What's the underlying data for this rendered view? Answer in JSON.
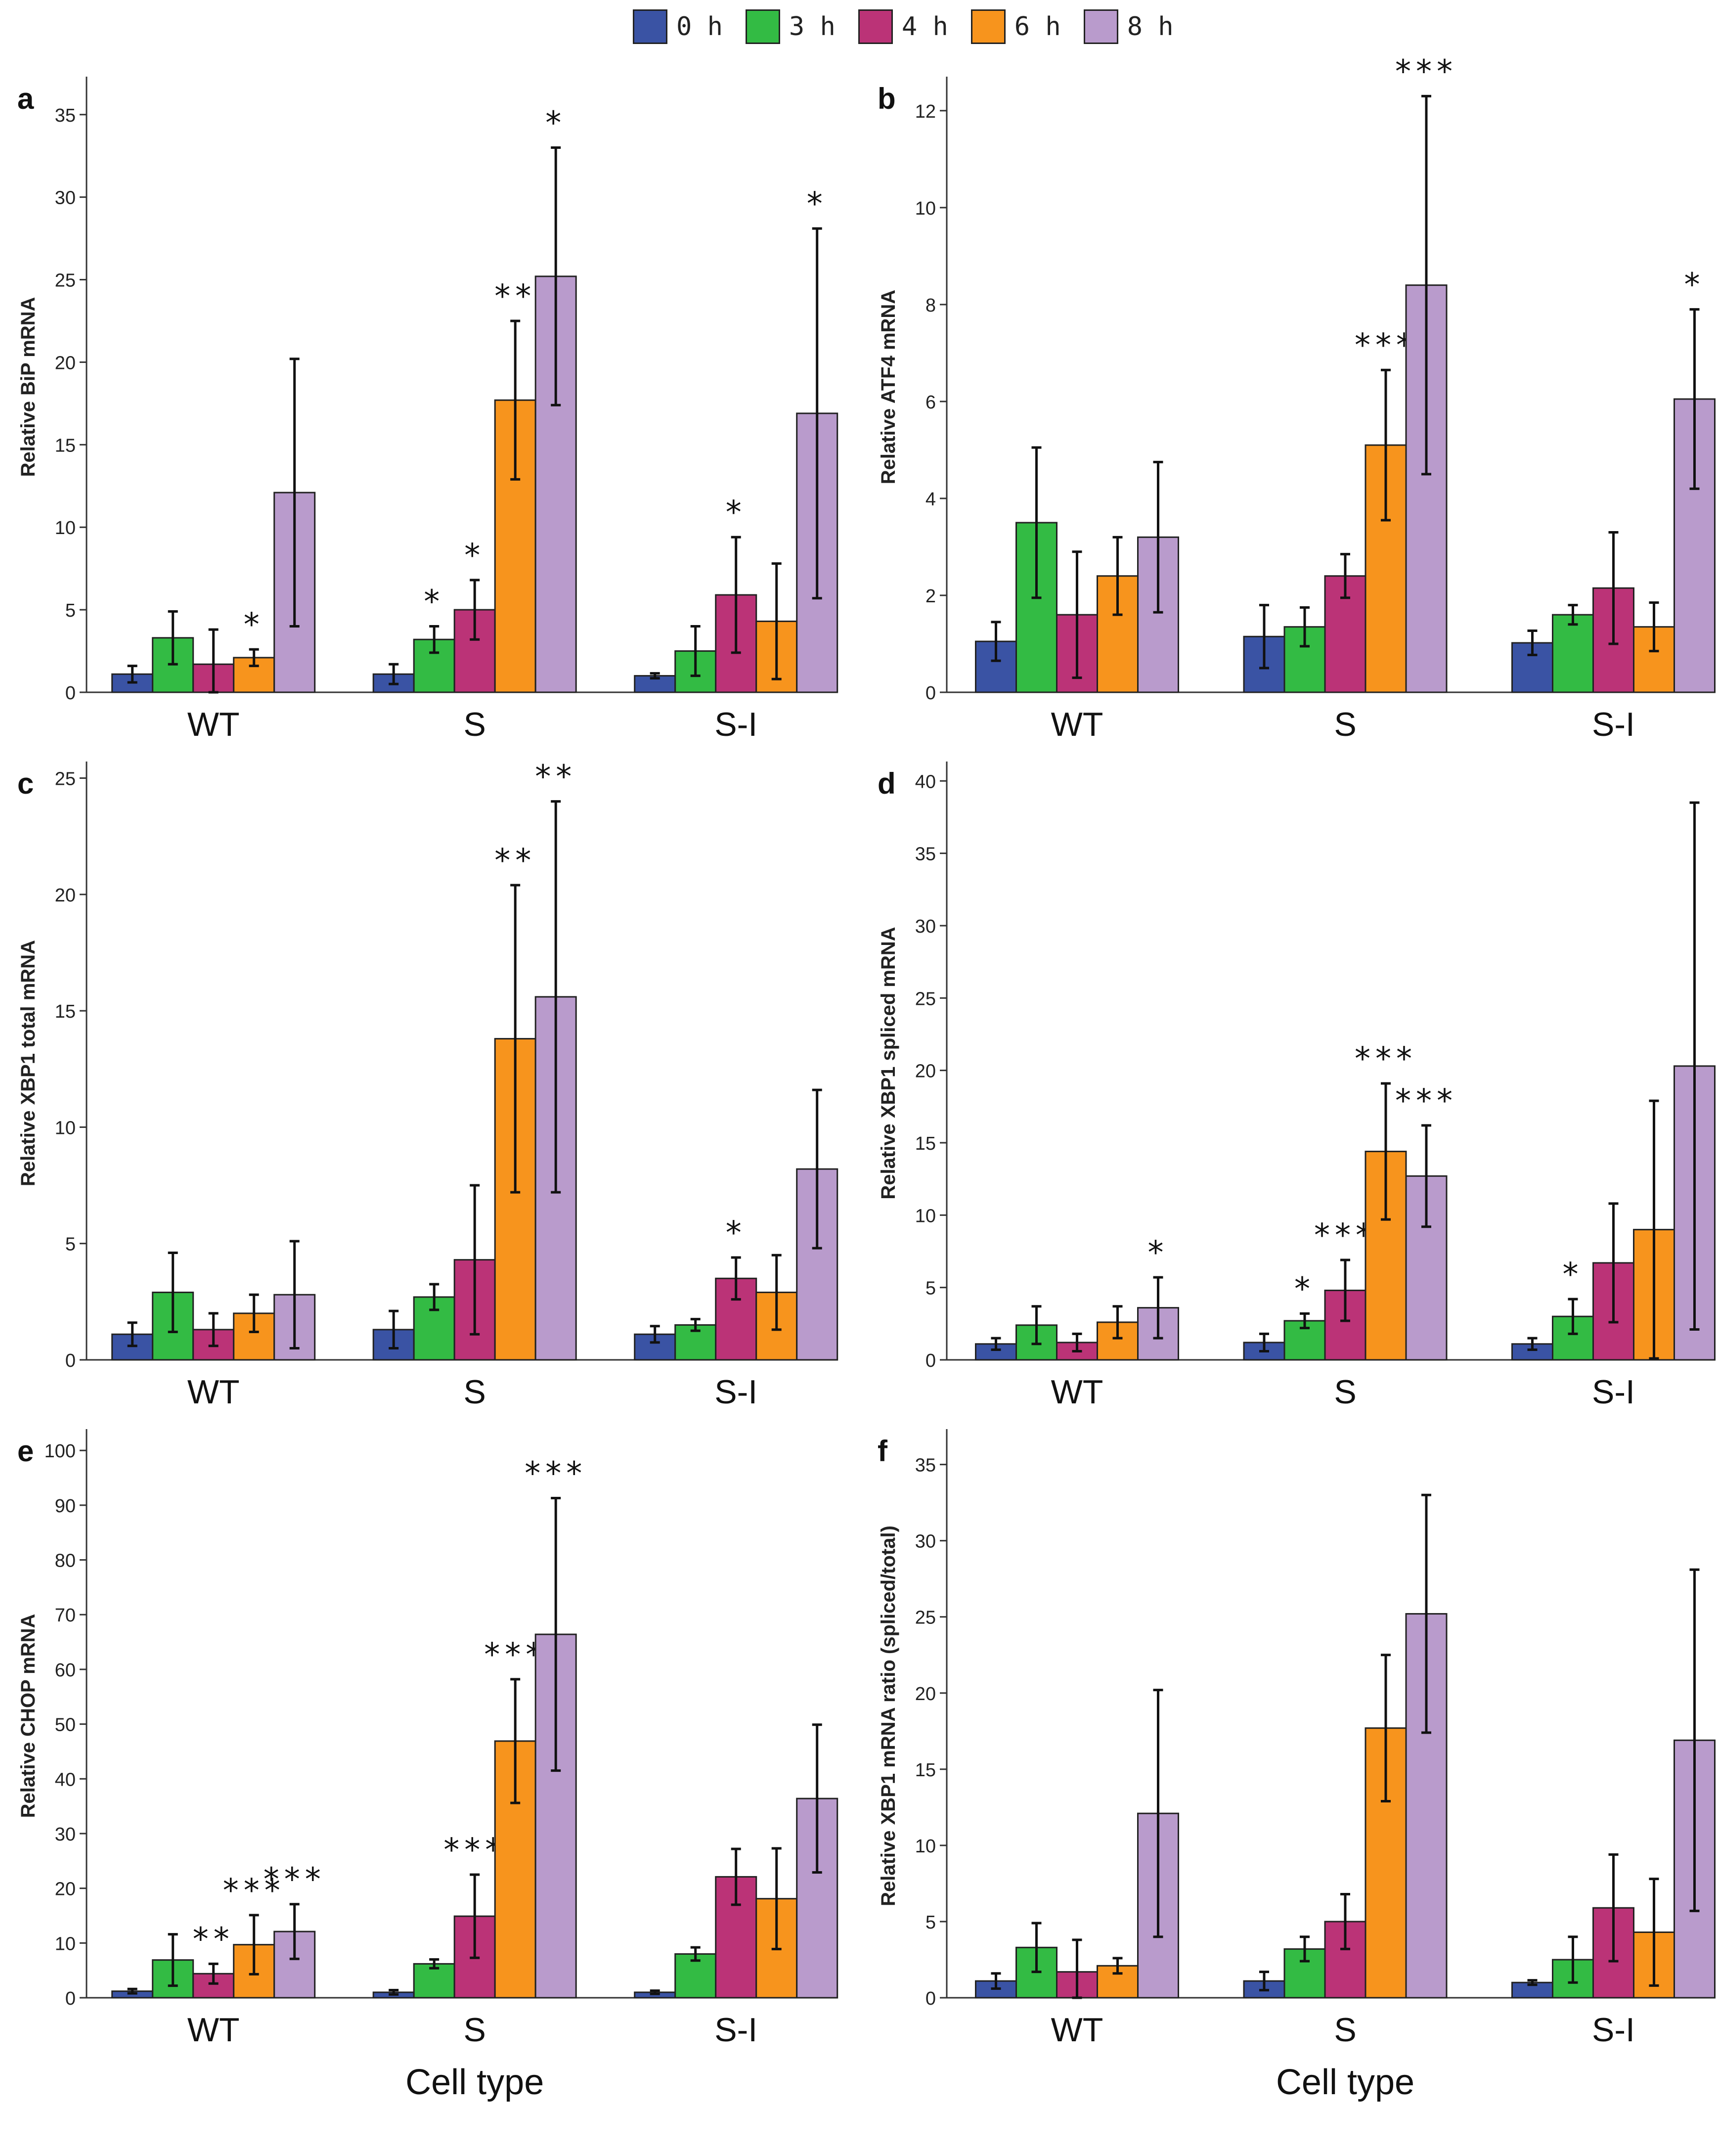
{
  "legend": [
    {
      "label": "0 h",
      "color": "#3a53a4"
    },
    {
      "label": "3 h",
      "color": "#33bb44"
    },
    {
      "label": "4 h",
      "color": "#bb3377"
    },
    {
      "label": "6 h",
      "color": "#f7941d"
    },
    {
      "label": "8 h",
      "color": "#b99bcc"
    }
  ],
  "chart_data": [
    {
      "type": "bar",
      "panel": "a",
      "ylabel": "Relative BiP mRNA",
      "xlabel": "",
      "categories": [
        "WT",
        "S",
        "S-I"
      ],
      "ylim": [
        0,
        37
      ],
      "yticks": [
        0,
        5,
        10,
        15,
        20,
        25,
        30,
        35
      ],
      "series": [
        {
          "name": "0 h",
          "values": [
            1.1,
            1.1,
            1.0
          ],
          "errors": [
            0.5,
            0.6,
            0.15
          ],
          "sig": [
            "",
            "",
            ""
          ]
        },
        {
          "name": "3 h",
          "values": [
            3.3,
            3.2,
            2.5
          ],
          "errors": [
            1.6,
            0.8,
            1.5
          ],
          "sig": [
            "",
            "*",
            ""
          ]
        },
        {
          "name": "4 h",
          "values": [
            1.7,
            5.0,
            5.9
          ],
          "errors": [
            2.1,
            1.8,
            3.5
          ],
          "sig": [
            "",
            "*",
            "*"
          ]
        },
        {
          "name": "6 h",
          "values": [
            2.1,
            17.7,
            4.3
          ],
          "errors": [
            0.5,
            4.8,
            3.5
          ],
          "sig": [
            "*",
            "**",
            ""
          ]
        },
        {
          "name": "8 h",
          "values": [
            12.1,
            25.2,
            16.9
          ],
          "errors": [
            8.1,
            7.8,
            11.2
          ],
          "sig": [
            "",
            "*",
            "*"
          ]
        }
      ]
    },
    {
      "type": "bar",
      "panel": "b",
      "ylabel": "Relative ATF4 mRNA",
      "xlabel": "",
      "categories": [
        "WT",
        "S",
        "S-I"
      ],
      "ylim": [
        0,
        12.6
      ],
      "yticks": [
        0,
        2,
        4,
        6,
        8,
        10,
        12
      ],
      "series": [
        {
          "name": "0 h",
          "values": [
            1.05,
            1.15,
            1.02
          ],
          "errors": [
            0.4,
            0.65,
            0.25
          ],
          "sig": [
            "",
            "",
            ""
          ]
        },
        {
          "name": "3 h",
          "values": [
            3.5,
            1.35,
            1.6
          ],
          "errors": [
            1.55,
            0.4,
            0.2
          ],
          "sig": [
            "",
            "",
            ""
          ]
        },
        {
          "name": "4 h",
          "values": [
            1.6,
            2.4,
            2.15
          ],
          "errors": [
            1.3,
            0.45,
            1.15
          ],
          "sig": [
            "",
            "",
            ""
          ]
        },
        {
          "name": "6 h",
          "values": [
            2.4,
            5.1,
            1.35
          ],
          "errors": [
            0.8,
            1.55,
            0.5
          ],
          "sig": [
            "",
            "***",
            ""
          ]
        },
        {
          "name": "8 h",
          "values": [
            3.2,
            8.4,
            6.05
          ],
          "errors": [
            1.55,
            3.9,
            1.85
          ],
          "sig": [
            "",
            "***",
            "*"
          ]
        }
      ]
    },
    {
      "type": "bar",
      "panel": "c",
      "ylabel": "Relative XBP1 total mRNA",
      "xlabel": "",
      "categories": [
        "WT",
        "S",
        "S-I"
      ],
      "ylim": [
        0,
        25.5
      ],
      "yticks": [
        0,
        5,
        10,
        15,
        20,
        25
      ],
      "series": [
        {
          "name": "0 h",
          "values": [
            1.1,
            1.3,
            1.1
          ],
          "errors": [
            0.5,
            0.8,
            0.35
          ],
          "sig": [
            "",
            "",
            ""
          ]
        },
        {
          "name": "3 h",
          "values": [
            2.9,
            2.7,
            1.5
          ],
          "errors": [
            1.7,
            0.55,
            0.25
          ],
          "sig": [
            "",
            "",
            ""
          ]
        },
        {
          "name": "4 h",
          "values": [
            1.3,
            4.3,
            3.5
          ],
          "errors": [
            0.7,
            3.2,
            0.9
          ],
          "sig": [
            "",
            "",
            "*"
          ]
        },
        {
          "name": "6 h",
          "values": [
            2.0,
            13.8,
            2.9
          ],
          "errors": [
            0.8,
            6.6,
            1.6
          ],
          "sig": [
            "",
            "**",
            ""
          ]
        },
        {
          "name": "8 h",
          "values": [
            2.8,
            15.6,
            8.2
          ],
          "errors": [
            2.3,
            8.4,
            3.4
          ],
          "sig": [
            "",
            "**",
            ""
          ]
        }
      ]
    },
    {
      "type": "bar",
      "panel": "d",
      "ylabel": "Relative XBP1 spliced mRNA",
      "xlabel": "",
      "categories": [
        "WT",
        "S",
        "S-I"
      ],
      "ylim": [
        0,
        41
      ],
      "yticks": [
        0,
        5,
        10,
        15,
        20,
        25,
        30,
        35,
        40
      ],
      "series": [
        {
          "name": "0 h",
          "values": [
            1.1,
            1.2,
            1.1
          ],
          "errors": [
            0.4,
            0.6,
            0.4
          ],
          "sig": [
            "",
            "",
            ""
          ]
        },
        {
          "name": "3 h",
          "values": [
            2.4,
            2.7,
            3.0
          ],
          "errors": [
            1.3,
            0.5,
            1.2
          ],
          "sig": [
            "",
            "*",
            "*"
          ]
        },
        {
          "name": "4 h",
          "values": [
            1.2,
            4.8,
            6.7
          ],
          "errors": [
            0.6,
            2.1,
            4.1
          ],
          "sig": [
            "",
            "***",
            ""
          ]
        },
        {
          "name": "6 h",
          "values": [
            2.6,
            14.4,
            9.0
          ],
          "errors": [
            1.1,
            4.7,
            8.9
          ],
          "sig": [
            "",
            "***",
            ""
          ]
        },
        {
          "name": "8 h",
          "values": [
            3.6,
            12.7,
            20.3
          ],
          "errors": [
            2.1,
            3.5,
            18.2
          ],
          "sig": [
            "*",
            "***",
            ""
          ]
        }
      ]
    },
    {
      "type": "bar",
      "panel": "e",
      "ylabel": "Relative CHOP mRNA",
      "xlabel": "Cell type",
      "categories": [
        "WT",
        "S",
        "S-I"
      ],
      "ylim": [
        0,
        103
      ],
      "yticks": [
        0,
        10,
        20,
        30,
        40,
        50,
        60,
        70,
        80,
        90,
        100
      ],
      "series": [
        {
          "name": "0 h",
          "values": [
            1.2,
            1.0,
            1.0
          ],
          "errors": [
            0.4,
            0.4,
            0.3
          ],
          "sig": [
            "",
            "",
            ""
          ]
        },
        {
          "name": "3 h",
          "values": [
            6.9,
            6.2,
            8.0
          ],
          "errors": [
            4.7,
            0.8,
            1.2
          ],
          "sig": [
            "",
            "",
            ""
          ]
        },
        {
          "name": "4 h",
          "values": [
            4.4,
            14.9,
            22.1
          ],
          "errors": [
            1.8,
            7.6,
            5.1
          ],
          "sig": [
            "**",
            "***",
            ""
          ]
        },
        {
          "name": "6 h",
          "values": [
            9.7,
            46.9,
            18.1
          ],
          "errors": [
            5.4,
            11.3,
            9.2
          ],
          "sig": [
            "***",
            "***",
            ""
          ]
        },
        {
          "name": "8 h",
          "values": [
            12.1,
            66.4,
            36.4
          ],
          "errors": [
            5.0,
            24.9,
            13.5
          ],
          "sig": [
            "***",
            "***",
            ""
          ]
        }
      ]
    },
    {
      "type": "bar",
      "panel": "f",
      "ylabel": "Relative XBP1 mRNA ratio (spliced/total)",
      "xlabel": "Cell type",
      "categories": [
        "WT",
        "S",
        "S-I"
      ],
      "ylim": [
        0,
        37
      ],
      "yticks": [
        0,
        5,
        10,
        15,
        20,
        25,
        30,
        35
      ],
      "series": [
        {
          "name": "0 h",
          "values": [
            1.1,
            1.1,
            1.0
          ],
          "errors": [
            0.5,
            0.6,
            0.15
          ],
          "sig": [
            "",
            "",
            ""
          ]
        },
        {
          "name": "3 h",
          "values": [
            3.3,
            3.2,
            2.5
          ],
          "errors": [
            1.6,
            0.8,
            1.5
          ],
          "sig": [
            "",
            "",
            ""
          ]
        },
        {
          "name": "4 h",
          "values": [
            1.7,
            5.0,
            5.9
          ],
          "errors": [
            2.1,
            1.8,
            3.5
          ],
          "sig": [
            "",
            "",
            ""
          ]
        },
        {
          "name": "6 h",
          "values": [
            2.1,
            17.7,
            4.3
          ],
          "errors": [
            0.5,
            4.8,
            3.5
          ],
          "sig": [
            "",
            "",
            ""
          ]
        },
        {
          "name": "8 h",
          "values": [
            12.1,
            25.2,
            16.9
          ],
          "errors": [
            8.1,
            7.8,
            11.2
          ],
          "sig": [
            "",
            "",
            ""
          ]
        }
      ]
    }
  ]
}
